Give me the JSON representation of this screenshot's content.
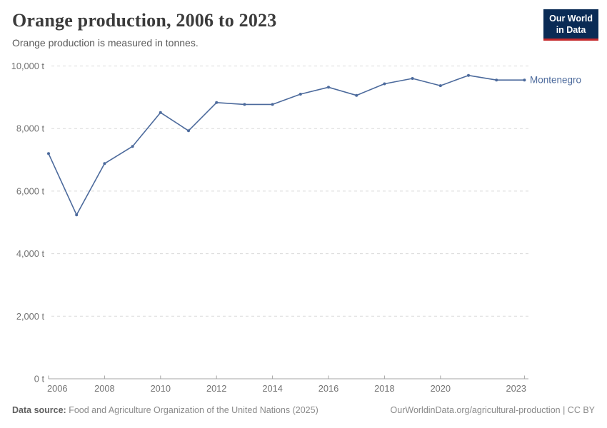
{
  "header": {
    "title": "Orange production, 2006 to 2023",
    "subtitle": "Orange production is measured in tonnes.",
    "logo": {
      "line1": "Our World",
      "line2": "in Data",
      "bg_color": "#0A2B55",
      "accent_color": "#C5292B"
    }
  },
  "chart_data": {
    "type": "line",
    "title": "Orange production, 2006 to 2023",
    "subtitle": "Orange production is measured in tonnes.",
    "unit": "t",
    "x": [
      2006,
      2007,
      2008,
      2009,
      2010,
      2011,
      2012,
      2013,
      2014,
      2015,
      2016,
      2017,
      2018,
      2019,
      2020,
      2021,
      2022,
      2023
    ],
    "series": [
      {
        "name": "Montenegro",
        "color": "#4C6A9C",
        "values": [
          7200,
          5240,
          6880,
          7430,
          8510,
          7930,
          8830,
          8770,
          8770,
          9100,
          9320,
          9060,
          9430,
          9600,
          9370,
          9700,
          9550,
          9550
        ]
      }
    ],
    "ylim": [
      0,
      10000
    ],
    "y_ticks": [
      {
        "value": 0,
        "label": "0 t"
      },
      {
        "value": 2000,
        "label": "2,000 t"
      },
      {
        "value": 4000,
        "label": "4,000 t"
      },
      {
        "value": 6000,
        "label": "6,000 t"
      },
      {
        "value": 8000,
        "label": "8,000 t"
      },
      {
        "value": 10000,
        "label": "10,000 t"
      }
    ],
    "x_ticks": [
      2006,
      2008,
      2010,
      2012,
      2014,
      2016,
      2018,
      2020,
      2023
    ],
    "grid": "horizontal-dashed",
    "grid_color": "#dadada",
    "axis_color": "#a5a5a5",
    "legend_position": "end-of-line-label"
  },
  "footer": {
    "source_label": "Data source:",
    "source_text": "Food and Agriculture Organization of the United Nations (2025)",
    "citation": "OurWorldinData.org/agricultural-production | CC BY"
  }
}
